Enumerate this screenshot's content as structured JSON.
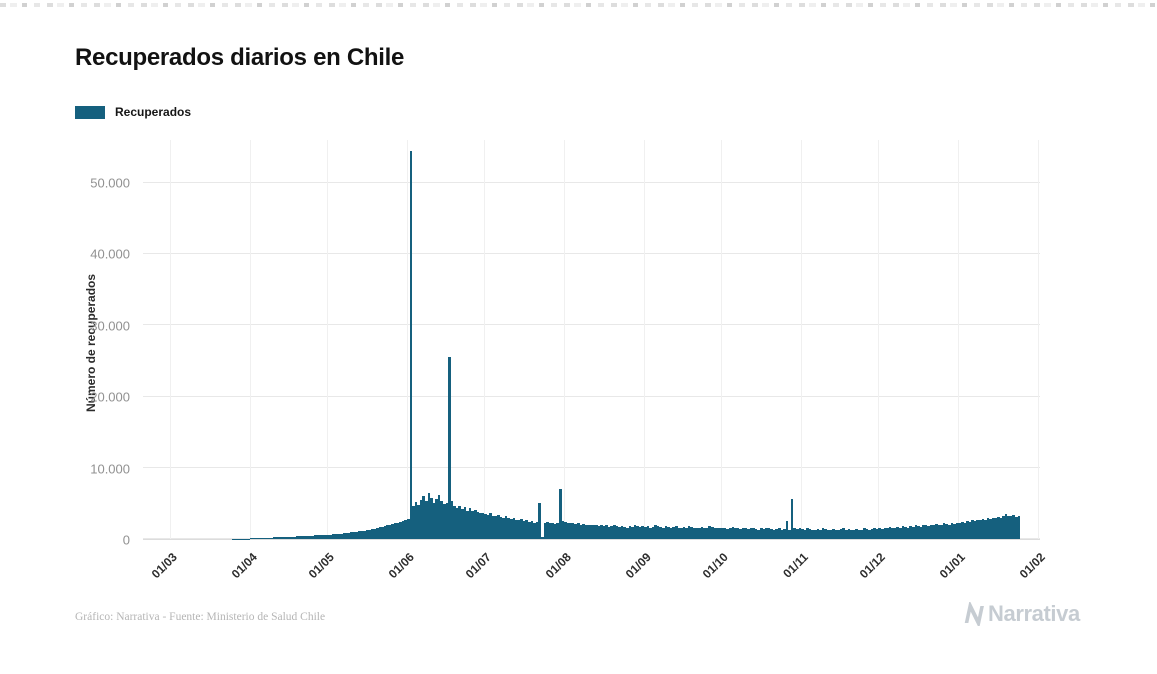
{
  "header": {
    "title": "Recuperados diarios en Chile"
  },
  "legend": {
    "label": "Recuperados",
    "color": "#15607e"
  },
  "footer": {
    "credit": "Gráfico: Narrativa - Fuente: Ministerio de Salud Chile",
    "logo_text": "Narrativa"
  },
  "chart_data": {
    "type": "bar",
    "title": "Recuperados diarios en Chile",
    "xlabel": "",
    "ylabel": "Número de recuperados",
    "ylim": [
      0,
      56000
    ],
    "grid": true,
    "legend_position": "top-left",
    "bar_color": "#15607e",
    "ytick_values": [
      0,
      10000,
      20000,
      30000,
      40000,
      50000
    ],
    "ytick_labels": [
      "0",
      "10.000",
      "20.000",
      "30.000",
      "40.000",
      "50.000"
    ],
    "xtick_labels": [
      "01/03",
      "01/04",
      "01/05",
      "01/06",
      "01/07",
      "01/08",
      "01/09",
      "01/10",
      "01/11",
      "01/12",
      "01/01",
      "01/02"
    ],
    "xtick_positions": [
      0,
      31,
      61,
      92,
      122,
      153,
      184,
      214,
      245,
      275,
      306,
      337
    ],
    "x_domain": 337,
    "x_tick_rotation": 45,
    "series": [
      {
        "name": "Recuperados",
        "values": [
          0,
          0,
          0,
          0,
          0,
          0,
          0,
          0,
          0,
          0,
          0,
          0,
          0,
          0,
          0,
          0,
          0,
          0,
          0,
          0,
          2,
          4,
          6,
          8,
          12,
          16,
          22,
          30,
          40,
          52,
          64,
          80,
          95,
          110,
          125,
          140,
          155,
          170,
          185,
          200,
          215,
          230,
          250,
          265,
          280,
          300,
          315,
          330,
          350,
          370,
          390,
          405,
          420,
          440,
          460,
          480,
          500,
          520,
          540,
          560,
          580,
          600,
          630,
          660,
          700,
          730,
          760,
          800,
          840,
          880,
          920,
          960,
          1000,
          1060,
          1120,
          1180,
          1240,
          1300,
          1380,
          1460,
          1540,
          1620,
          1700,
          1800,
          1900,
          2000,
          2100,
          2200,
          2300,
          2400,
          2500,
          2600,
          2750,
          54500,
          4600,
          5200,
          4800,
          5500,
          6100,
          5300,
          6500,
          5800,
          5000,
          5600,
          6200,
          5400,
          4900,
          5100,
          25600,
          5300,
          4700,
          4400,
          4600,
          4200,
          4500,
          4000,
          4300,
          3900,
          4100,
          3800,
          3600,
          3700,
          3500,
          3400,
          3600,
          3300,
          3200,
          3400,
          3100,
          3000,
          3200,
          2900,
          2800,
          3000,
          2700,
          2600,
          2800,
          2500,
          2600,
          2400,
          2500,
          2300,
          2400,
          5000,
          300,
          2200,
          2400,
          2300,
          2200,
          2100,
          2300,
          7000,
          2500,
          2400,
          2300,
          2200,
          2300,
          2100,
          2200,
          2000,
          2100,
          2000,
          1900,
          2000,
          1900,
          2000,
          1800,
          1900,
          1800,
          1900,
          1700,
          1800,
          1900,
          1800,
          1700,
          1800,
          1700,
          1600,
          1800,
          1700,
          1900,
          1800,
          1700,
          1800,
          1700,
          1800,
          1600,
          1700,
          1900,
          1800,
          1700,
          1600,
          1800,
          1700,
          1600,
          1700,
          1800,
          1600,
          1500,
          1700,
          1600,
          1800,
          1700,
          1600,
          1500,
          1600,
          1700,
          1500,
          1600,
          1800,
          1700,
          1600,
          1500,
          1600,
          1500,
          1600,
          1400,
          1500,
          1700,
          1600,
          1500,
          1400,
          1600,
          1500,
          1400,
          1500,
          1600,
          1400,
          1300,
          1500,
          1400,
          1600,
          1500,
          1400,
          1300,
          1400,
          1500,
          1300,
          1400,
          2500,
          1300,
          5600,
          1500,
          1400,
          1500,
          1400,
          1300,
          1500,
          1400,
          1300,
          1200,
          1400,
          1300,
          1500,
          1400,
          1300,
          1200,
          1400,
          1300,
          1200,
          1400,
          1500,
          1300,
          1400,
          1200,
          1300,
          1400,
          1200,
          1300,
          1500,
          1400,
          1300,
          1400,
          1500,
          1400,
          1500,
          1400,
          1600,
          1500,
          1700,
          1600,
          1500,
          1700,
          1600,
          1800,
          1700,
          1600,
          1800,
          1700,
          1900,
          1800,
          1700,
          1900,
          2000,
          1800,
          1900,
          2000,
          2100,
          1900,
          2000,
          2200,
          2100,
          2000,
          2200,
          2100,
          2300,
          2200,
          2400,
          2300,
          2500,
          2400,
          2600,
          2500,
          2700,
          2600,
          2800,
          2700,
          2900,
          2800,
          3000,
          2900,
          3100,
          3000,
          3200,
          3500,
          3300,
          3200,
          3400,
          3100,
          3200
        ]
      }
    ]
  }
}
